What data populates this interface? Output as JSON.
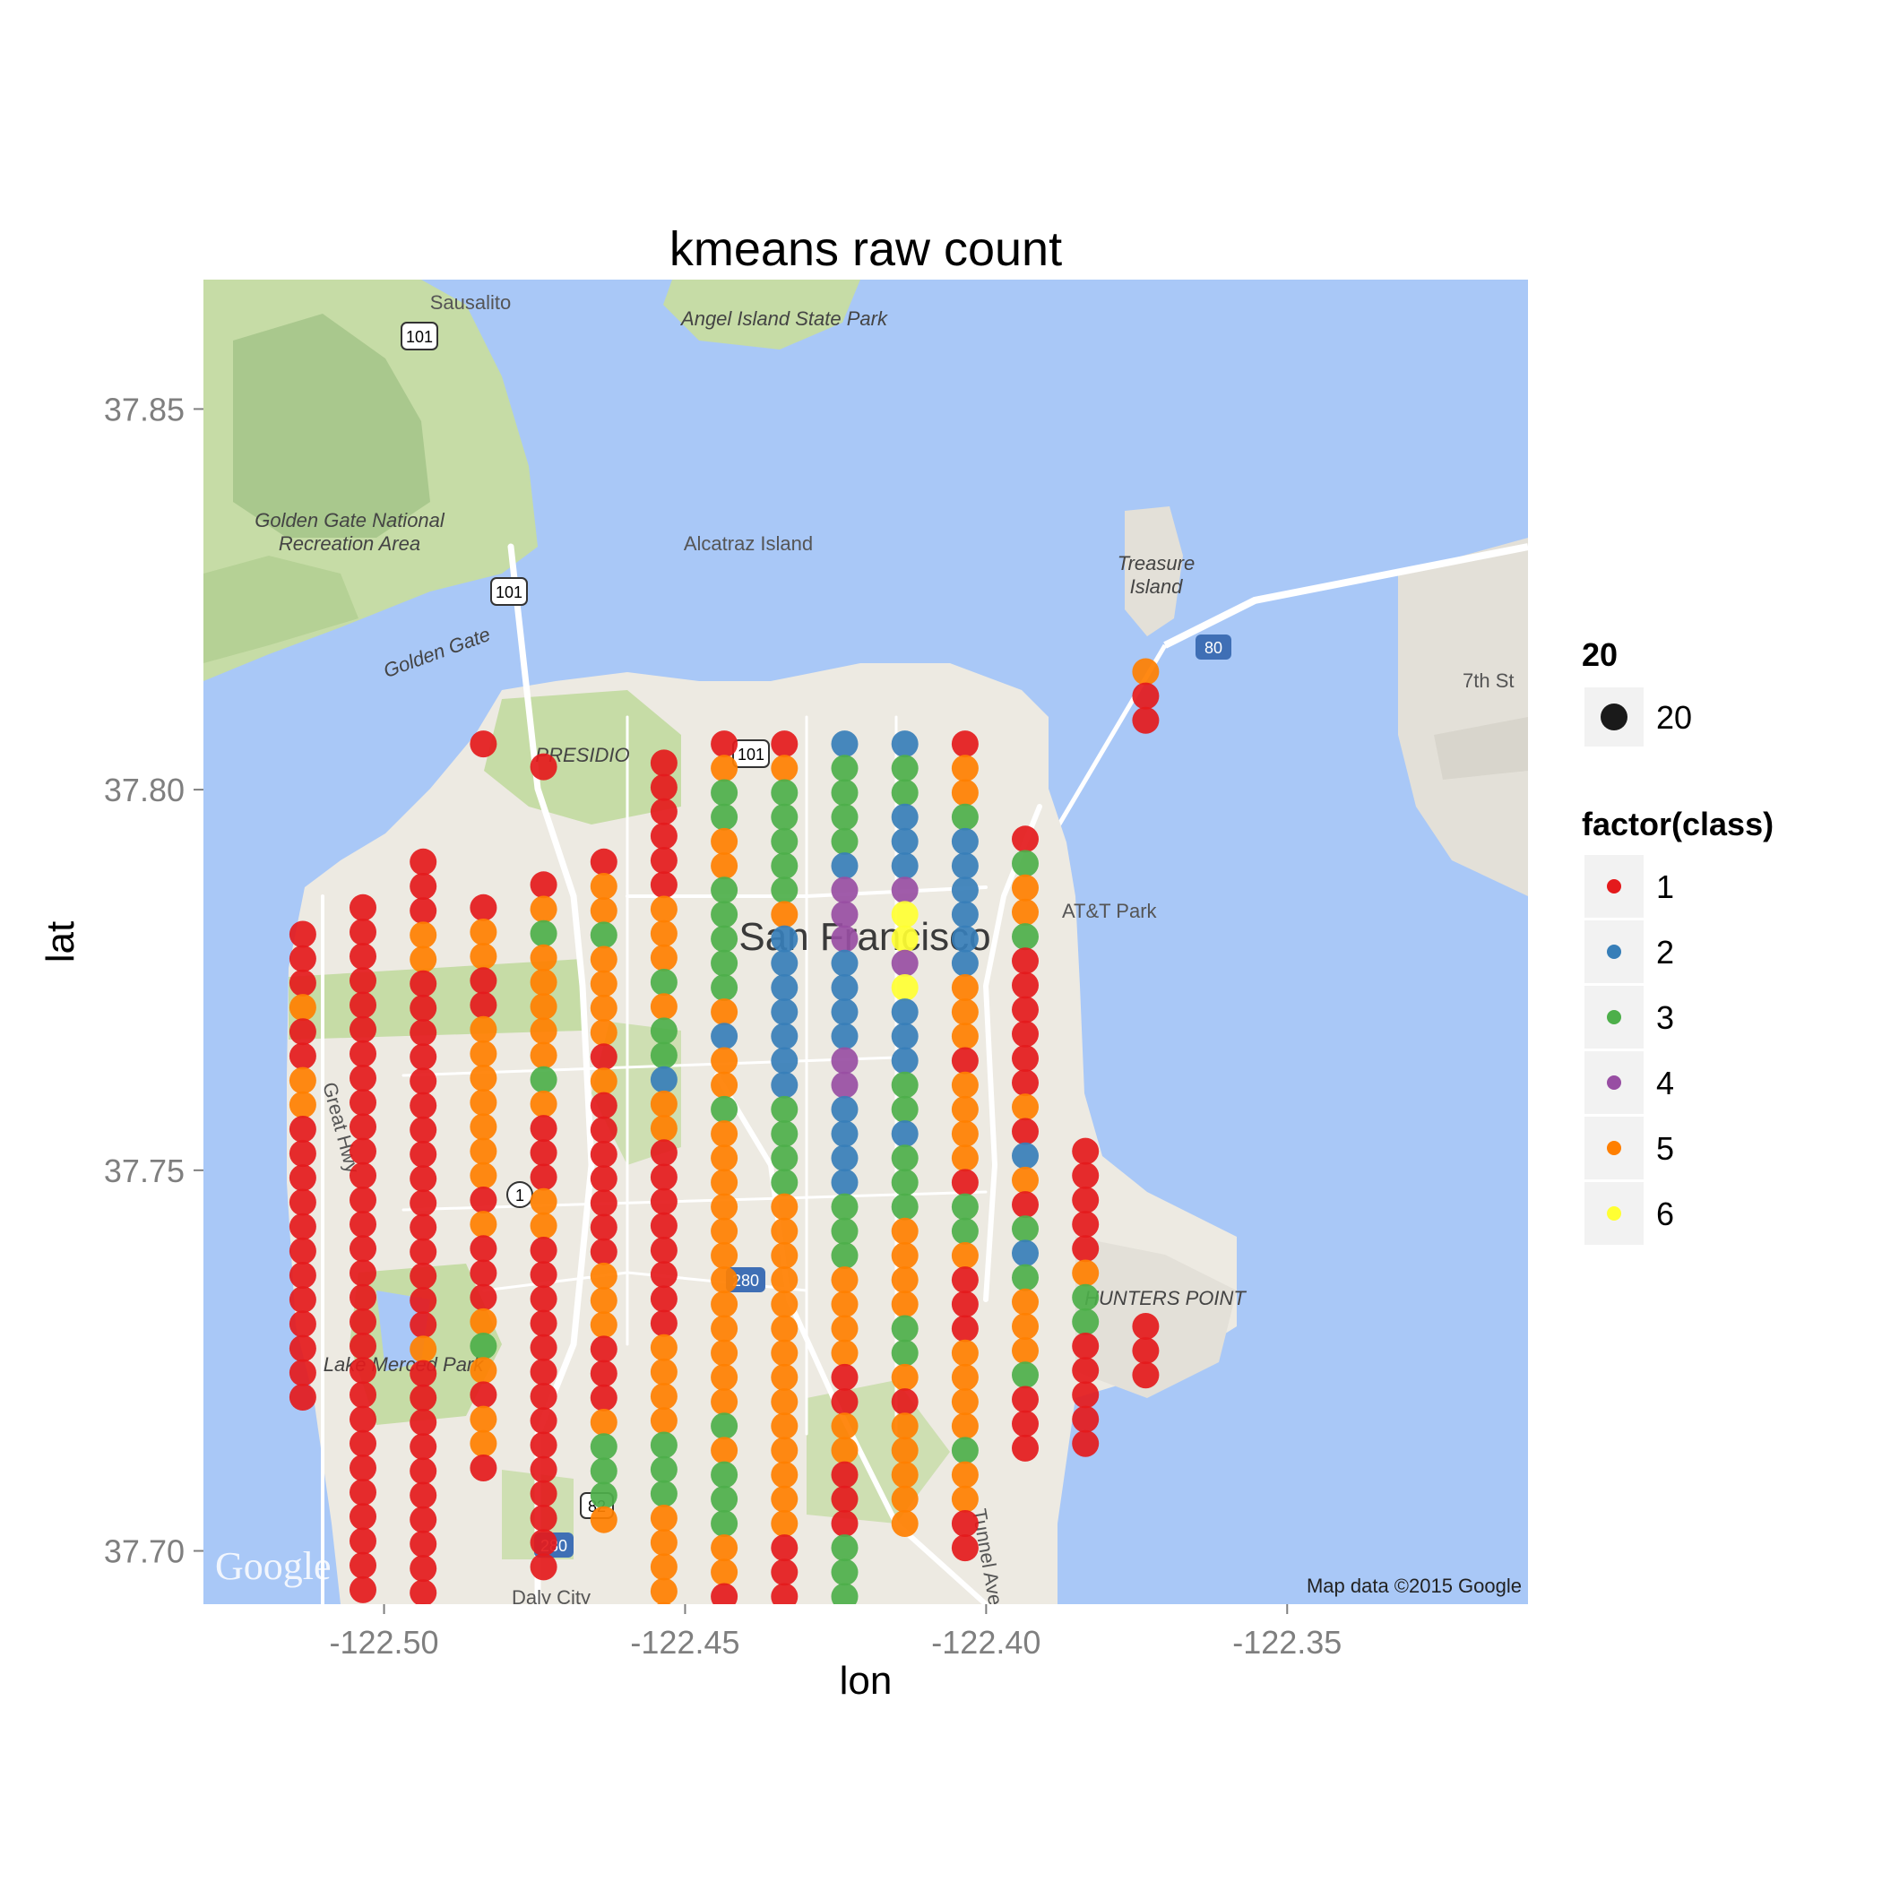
{
  "chart_data": {
    "type": "scatter",
    "title": "kmeans raw count",
    "xlabel": "lon",
    "ylabel": "lat",
    "xlim": [
      -122.53,
      -122.31
    ],
    "ylim": [
      37.693,
      37.867
    ],
    "x_ticks": [
      -122.5,
      -122.45,
      -122.4,
      -122.35
    ],
    "x_tick_labels": [
      "-122.50",
      "-122.45",
      "-122.40",
      "-122.35"
    ],
    "y_ticks": [
      37.7,
      37.75,
      37.8,
      37.85
    ],
    "y_tick_labels": [
      "37.70",
      "37.75",
      "37.80",
      "37.85"
    ],
    "grid": false,
    "background": "google-map",
    "lat_step": 0.0032,
    "columns": [
      {
        "lon": -122.5135,
        "start": 37.781,
        "classes": [
          1,
          1,
          1,
          5,
          1,
          1,
          5,
          5,
          1,
          1,
          1,
          1,
          1,
          1,
          1,
          1,
          1,
          1,
          1,
          1
        ]
      },
      {
        "lon": -122.5035,
        "start": 37.7845,
        "classes": [
          1,
          1,
          1,
          1,
          1,
          1,
          1,
          1,
          1,
          1,
          1,
          1,
          1,
          1,
          1,
          1,
          1,
          1,
          1,
          1,
          1,
          1,
          1,
          1,
          1,
          1,
          1,
          1,
          1
        ]
      },
      {
        "lon": -122.4935,
        "start": 37.7905,
        "classes": [
          1,
          1,
          1,
          5,
          5,
          1,
          1,
          1,
          1,
          1,
          1,
          1,
          1,
          1,
          1,
          1,
          1,
          1,
          1,
          1,
          5,
          1,
          1,
          1,
          1,
          1,
          1,
          1,
          1,
          1,
          1,
          1,
          1
        ]
      },
      {
        "lon": -122.4835,
        "start": 37.806,
        "classes": [
          1
        ]
      },
      {
        "lon": -122.4835,
        "start": 37.7845,
        "classes": [
          1,
          5,
          5,
          1,
          1,
          5,
          5,
          5,
          5,
          5,
          5,
          5,
          1,
          5,
          1,
          1,
          1,
          5,
          3,
          5,
          1,
          5,
          5,
          1
        ]
      },
      {
        "lon": -122.4735,
        "start": 37.803,
        "classes": [
          1
        ]
      },
      {
        "lon": -122.4735,
        "start": 37.7875,
        "classes": [
          1,
          5,
          3,
          5,
          5,
          5,
          5,
          5,
          3,
          5,
          1,
          1,
          1,
          5,
          5,
          1,
          1,
          1,
          1,
          1,
          1,
          1,
          1,
          1,
          1,
          1,
          1,
          1,
          1
        ]
      },
      {
        "lon": -122.4635,
        "start": 37.7905,
        "classes": [
          1,
          5,
          5,
          3,
          5,
          5,
          5,
          5,
          1,
          5,
          1,
          1,
          1,
          1,
          1,
          1,
          1,
          5,
          5,
          5,
          1,
          1,
          1,
          5,
          3,
          3,
          3,
          5
        ]
      },
      {
        "lon": -122.4535,
        "start": 37.8035,
        "classes": [
          1,
          1,
          1,
          1,
          1,
          1,
          5,
          5,
          5,
          3,
          5,
          3,
          3,
          2,
          5,
          5,
          1,
          1,
          1,
          1,
          1,
          1,
          1,
          1,
          5,
          5,
          5,
          5,
          3,
          3,
          3,
          5,
          5,
          5,
          5,
          5
        ]
      },
      {
        "lon": -122.4435,
        "start": 37.806,
        "classes": [
          1,
          5,
          3,
          3,
          5,
          5,
          3,
          3,
          3,
          3,
          3,
          5,
          2,
          5,
          5,
          3,
          5,
          5,
          5,
          5,
          5,
          5,
          5,
          5,
          5,
          5,
          5,
          5,
          3,
          5,
          3,
          3,
          3,
          5,
          5,
          1
        ]
      },
      {
        "lon": -122.4335,
        "start": 37.806,
        "classes": [
          1,
          5,
          3,
          3,
          3,
          3,
          3,
          5,
          2,
          2,
          2,
          2,
          2,
          2,
          2,
          3,
          3,
          3,
          3,
          5,
          5,
          5,
          5,
          5,
          5,
          5,
          5,
          5,
          5,
          5,
          5,
          5,
          5,
          1,
          1,
          1
        ]
      },
      {
        "lon": -122.4235,
        "start": 37.806,
        "classes": [
          2,
          3,
          3,
          3,
          3,
          2,
          4,
          4,
          4,
          2,
          2,
          2,
          2,
          4,
          4,
          2,
          2,
          2,
          2,
          3,
          3,
          3,
          5,
          5,
          5,
          5,
          1,
          1,
          5,
          5,
          1,
          1,
          1,
          3,
          3,
          3
        ]
      },
      {
        "lon": -122.4135,
        "start": 37.806,
        "classes": [
          2,
          3,
          3,
          2,
          2,
          2,
          4,
          6,
          6,
          4,
          6,
          2,
          2,
          2,
          3,
          3,
          2,
          3,
          3,
          3,
          5,
          5,
          5,
          5,
          3,
          3,
          5,
          1,
          5,
          5,
          5,
          5,
          5
        ]
      },
      {
        "lon": -122.4035,
        "start": 37.806,
        "classes": [
          1,
          5,
          5,
          3,
          2,
          2,
          2,
          2,
          2,
          2,
          5,
          5,
          5,
          1,
          5,
          5,
          5,
          5,
          1,
          3,
          3,
          5,
          1,
          1,
          1,
          5,
          5,
          5,
          5,
          3,
          5,
          5,
          1,
          1
        ]
      },
      {
        "lon": -122.3935,
        "start": 37.7935,
        "classes": [
          1,
          3,
          5,
          5,
          3,
          1,
          1,
          1,
          1,
          1,
          1,
          5,
          1,
          2,
          5,
          1,
          3,
          2,
          3,
          5,
          5,
          5,
          3,
          1,
          1,
          1
        ]
      },
      {
        "lon": -122.3835,
        "start": 37.7525,
        "classes": [
          1,
          1,
          1,
          1,
          1,
          5,
          3,
          3,
          1,
          1,
          1,
          1,
          1
        ]
      },
      {
        "lon": -122.3735,
        "start": 37.8155,
        "classes": [
          5,
          1,
          1
        ]
      },
      {
        "lon": -122.3735,
        "start": 37.7295,
        "classes": [
          1,
          1,
          1
        ]
      }
    ],
    "legend": {
      "size_title": "20",
      "size_label": "20",
      "class_title": "factor(class)",
      "entries": [
        {
          "label": "1",
          "color": "#E41A1C"
        },
        {
          "label": "2",
          "color": "#377EB8"
        },
        {
          "label": "3",
          "color": "#4DAF4A"
        },
        {
          "label": "4",
          "color": "#984EA3"
        },
        {
          "label": "5",
          "color": "#FF7F00"
        },
        {
          "label": "6",
          "color": "#FFFF33"
        }
      ]
    }
  },
  "map": {
    "attribution": "Map data ©2015 Google",
    "logo": "Google",
    "labels": {
      "sausalito": "Sausalito",
      "angel_island": "Angel Island State Park",
      "ggnra_1": "Golden Gate National",
      "ggnra_2": "Recreation Area",
      "alcatraz": "Alcatraz Island",
      "treasure_1": "Treasure",
      "treasure_2": "Island",
      "golden_gate": "Golden Gate",
      "presidio": "PRESIDIO",
      "san_francisco": "San Francisco",
      "att_park": "AT&T Park",
      "hunters_point": "HUNTERS POINT",
      "lake_merced": "Lake Merced Park",
      "great_hwy": "Great Hwy",
      "seventh_st": "7th St",
      "tunnel_ave": "Tunnel Ave",
      "daly_city": "Daly City"
    },
    "shields": {
      "us101": "101",
      "i80": "80",
      "i280": "280",
      "ca1": "1",
      "ca82": "82"
    },
    "colors": {
      "water": "#A9C8F7",
      "land": "#EDEAE2",
      "park": "#C6DCA6",
      "hills": "#9DBF83",
      "road": "#FFFFFF"
    }
  }
}
